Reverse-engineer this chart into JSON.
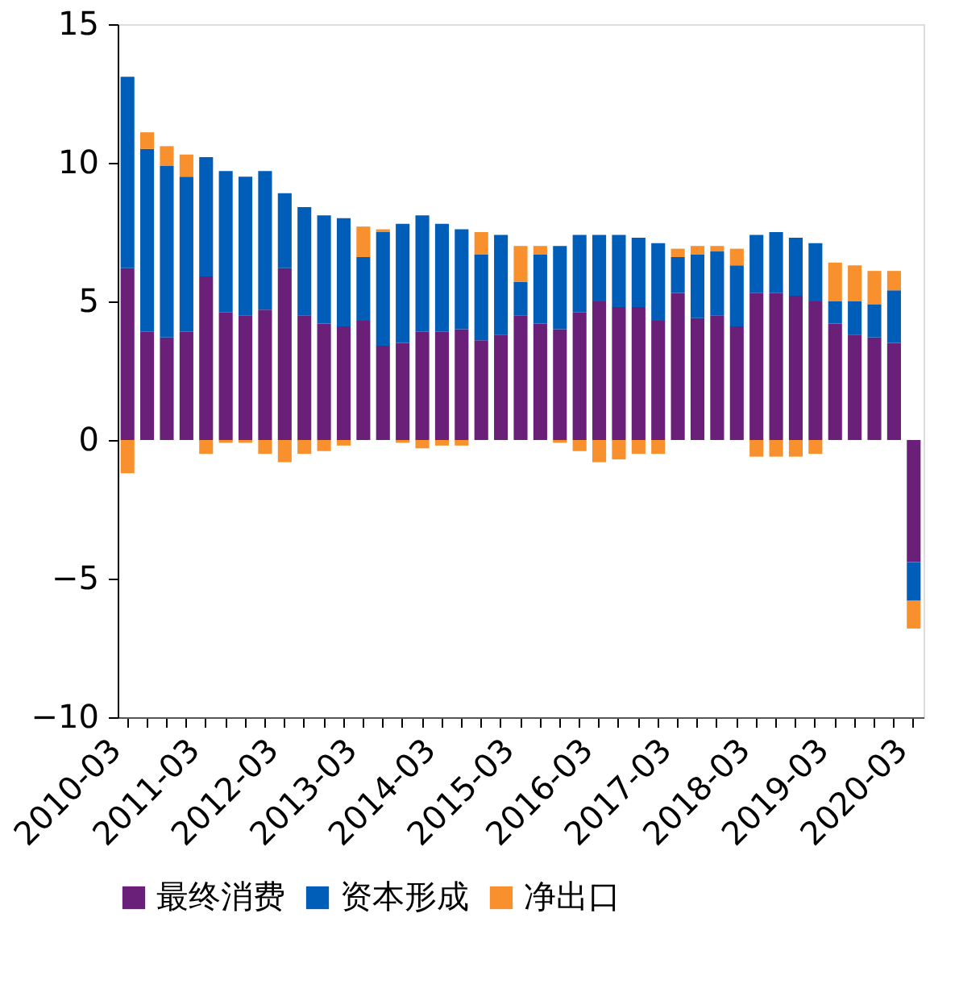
{
  "chart_data": {
    "type": "bar",
    "stacked": true,
    "categories": [
      "2010-03",
      null,
      null,
      null,
      "2011-03",
      null,
      null,
      null,
      "2012-03",
      null,
      null,
      null,
      "2013-03",
      null,
      null,
      null,
      "2014-03",
      null,
      null,
      null,
      "2015-03",
      null,
      null,
      null,
      "2016-03",
      null,
      null,
      null,
      "2017-03",
      null,
      null,
      null,
      "2018-03",
      null,
      null,
      null,
      "2019-03",
      null,
      null,
      null,
      "2020-03"
    ],
    "series": [
      {
        "name": "最终消费",
        "color": "#6a1f78",
        "values": [
          6.2,
          3.9,
          3.7,
          3.9,
          5.9,
          4.6,
          4.5,
          4.7,
          6.2,
          4.5,
          4.2,
          4.1,
          4.3,
          3.4,
          3.5,
          3.9,
          3.9,
          4.0,
          3.6,
          3.8,
          4.5,
          4.2,
          4.0,
          4.6,
          5.0,
          4.8,
          4.8,
          4.3,
          5.3,
          4.4,
          4.5,
          4.1,
          5.3,
          5.3,
          5.2,
          5.0,
          4.2,
          3.8,
          3.7,
          3.5,
          -4.4
        ]
      },
      {
        "name": "资本形成",
        "color": "#005eb8",
        "values": [
          6.9,
          6.6,
          6.2,
          5.6,
          4.3,
          5.1,
          5.0,
          5.0,
          2.7,
          3.9,
          3.9,
          3.9,
          2.3,
          4.1,
          4.3,
          4.2,
          3.9,
          3.6,
          3.1,
          3.6,
          1.2,
          2.5,
          3.0,
          2.8,
          2.4,
          2.6,
          2.5,
          2.8,
          1.3,
          2.3,
          2.3,
          2.2,
          2.1,
          2.2,
          2.1,
          2.1,
          0.8,
          1.2,
          1.2,
          1.9,
          -1.4
        ]
      },
      {
        "name": "净出口",
        "color": "#f7902d",
        "values": [
          -1.2,
          0.6,
          0.7,
          0.8,
          -0.5,
          -0.1,
          -0.1,
          -0.5,
          -0.8,
          -0.5,
          -0.4,
          -0.2,
          1.1,
          0.1,
          -0.1,
          -0.3,
          -0.2,
          -0.2,
          0.8,
          0,
          1.3,
          0.3,
          -0.1,
          -0.4,
          -0.8,
          -0.7,
          -0.5,
          -0.5,
          0.3,
          0.3,
          0.2,
          0.6,
          -0.6,
          -0.6,
          -0.6,
          -0.5,
          1.4,
          1.3,
          1.2,
          0.7,
          -1.0
        ]
      }
    ],
    "ylim": [
      -10,
      15
    ],
    "yticks": [
      -10,
      -5,
      0,
      5,
      10,
      15
    ],
    "grid": false,
    "legend": "bottom"
  }
}
